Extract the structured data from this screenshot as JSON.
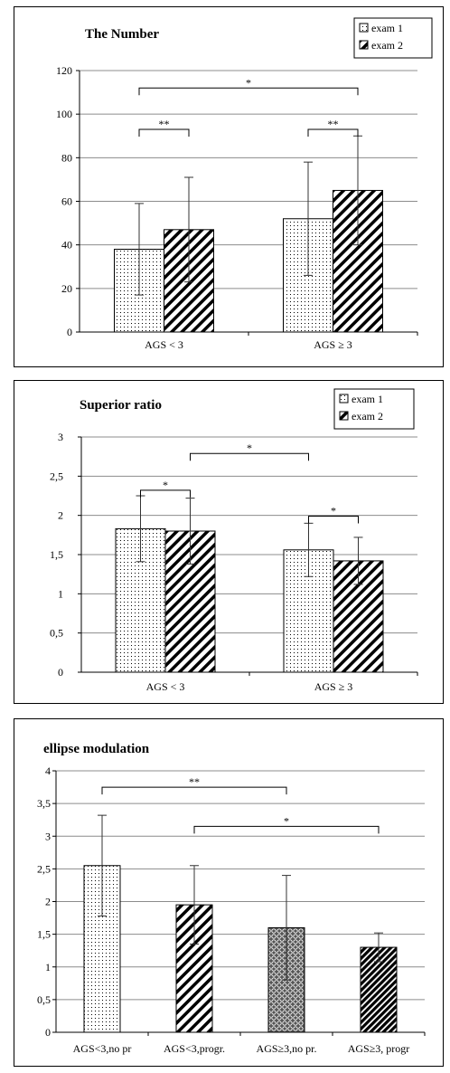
{
  "chart_data": [
    {
      "type": "bar",
      "title": "The Number",
      "categories": [
        "AGS < 3",
        "AGS ≥ 3"
      ],
      "series": [
        {
          "name": "exam 1",
          "values": [
            38,
            52
          ],
          "error": [
            21,
            26
          ],
          "pattern": "dots"
        },
        {
          "name": "exam 2",
          "values": [
            47,
            65
          ],
          "error": [
            24,
            25
          ],
          "pattern": "hatch"
        }
      ],
      "ylim": [
        0,
        120
      ],
      "yticks": [
        "0",
        "20",
        "40",
        "60",
        "80",
        "100",
        "120"
      ],
      "grid": true,
      "legend": "top-right",
      "significance": [
        {
          "from": [
            0,
            0
          ],
          "to": [
            0,
            1
          ],
          "label": "**",
          "y": 93
        },
        {
          "from": [
            1,
            0
          ],
          "to": [
            1,
            1
          ],
          "label": "**",
          "y": 93
        },
        {
          "from": [
            0,
            0
          ],
          "to": [
            1,
            1
          ],
          "label": "*",
          "y": 112
        }
      ]
    },
    {
      "type": "bar",
      "title": "Superior ratio",
      "categories": [
        "AGS < 3",
        "AGS ≥ 3"
      ],
      "series": [
        {
          "name": "exam 1",
          "values": [
            1.83,
            1.56
          ],
          "error": [
            0.42,
            0.34
          ],
          "pattern": "dots"
        },
        {
          "name": "exam 2",
          "values": [
            1.8,
            1.42
          ],
          "error": [
            0.42,
            0.3
          ],
          "pattern": "hatch"
        }
      ],
      "ylim": [
        0,
        3
      ],
      "yticks": [
        "0",
        "0,5",
        "1",
        "1,5",
        "2",
        "2,5",
        "3"
      ],
      "grid": true,
      "legend": "top-right",
      "significance": [
        {
          "from": [
            0,
            0
          ],
          "to": [
            0,
            1
          ],
          "label": "*",
          "y": 2.32
        },
        {
          "from": [
            1,
            0
          ],
          "to": [
            1,
            1
          ],
          "label": "*",
          "y": 1.99
        },
        {
          "from": [
            0,
            1
          ],
          "to": [
            1,
            0
          ],
          "label": "*",
          "y": 2.79
        }
      ]
    },
    {
      "type": "bar",
      "title": "ellipse modulation",
      "categories": [
        "AGS<3,no pr",
        "AGS<3,progr.",
        "AGS≥3,no pr.",
        "AGS≥3, progr"
      ],
      "series": [
        {
          "name": "",
          "values": [
            2.55,
            1.95,
            1.6,
            1.3
          ],
          "error": [
            0.77,
            0.6,
            0.8,
            0.22
          ],
          "patterns": [
            "dots",
            "hatch",
            "scales",
            "dense-hatch"
          ]
        }
      ],
      "ylim": [
        0,
        4
      ],
      "yticks": [
        "0",
        "0,5",
        "1",
        "1,5",
        "2",
        "2,5",
        "3",
        "3,5",
        "4"
      ],
      "grid": true,
      "significance": [
        {
          "from": [
            0,
            0
          ],
          "to": [
            2,
            0
          ],
          "label": "**",
          "y": 3.75
        },
        {
          "from": [
            1,
            0
          ],
          "to": [
            3,
            0
          ],
          "label": "*",
          "y": 3.15
        }
      ]
    }
  ]
}
